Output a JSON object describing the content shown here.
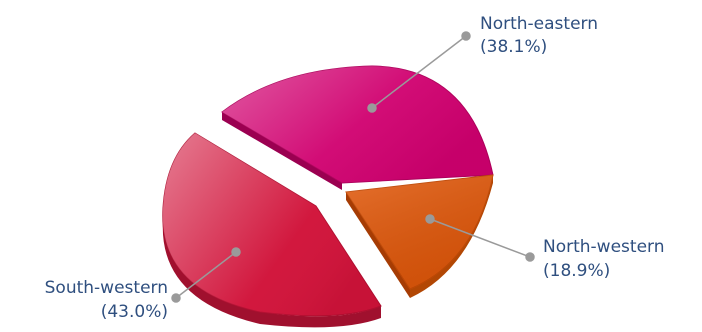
{
  "chart_data": {
    "type": "pie",
    "title": "",
    "three_d": true,
    "exploded": "South-western",
    "slices": [
      {
        "name": "North-eastern",
        "value": 38.1,
        "label": "North-eastern",
        "pct_label": "(38.1%)",
        "color": "#d0006f"
      },
      {
        "name": "North-western",
        "value": 18.9,
        "label": "North-western",
        "pct_label": "(18.9%)",
        "color": "#e2580a"
      },
      {
        "name": "South-western",
        "value": 43.0,
        "label": "South-western",
        "pct_label": "(43.0%)",
        "color": "#d1133a"
      }
    ]
  }
}
